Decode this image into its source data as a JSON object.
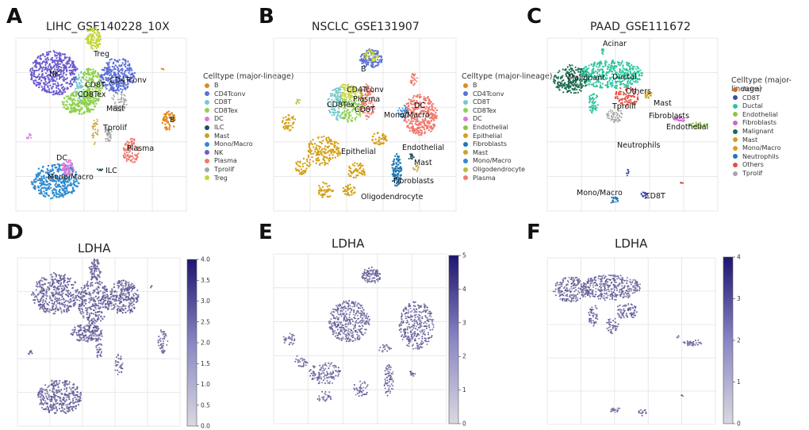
{
  "panels": {
    "A": {
      "letter": "A",
      "title": "LIHC_GSE140228_10X",
      "legend_title": "Celltype (major-lineage)"
    },
    "B": {
      "letter": "B",
      "title": "NSCLC_GSE131907",
      "legend_title": "Celltype (major-lineage)"
    },
    "C": {
      "letter": "C",
      "title": "PAAD_GSE111672",
      "legend_title": "Celltype (major-lineage)"
    },
    "D": {
      "letter": "D",
      "title": "LDHA"
    },
    "E": {
      "letter": "E",
      "title": "LDHA"
    },
    "F": {
      "letter": "F",
      "title": "LDHA"
    }
  },
  "colors": {
    "B": "#e08a1e",
    "CD4Tconv": "#5b6fd6",
    "CD8T": "#76c9c9",
    "CD8Tex": "#8fd14f",
    "DC": "#d97ad9",
    "ILC": "#1f4e5a",
    "Mast": "#c9a227",
    "Mono/Macro": "#2e8bd1",
    "NK": "#6a5acd",
    "Plasma": "#f07a70",
    "Tprolif": "#a6a6a6",
    "Treg": "#c6d63a",
    "Endothelial": "#8cc63f",
    "Epithelial": "#d4a017",
    "Fibroblasts": "#1f77b4",
    "Oligodendrocyte": "#b5bd3a",
    "Acinar": "#d2691e",
    "Ductal": "#2ec4a0",
    "Malignant": "#1b6b4f",
    "Neutrophils": "#c0392b",
    "Others": "#e74c3c",
    "FibroblastsPink": "#cc66cc",
    "Mono/MacroC": "#d4a017",
    "CD8TC": "#3b4ba8",
    "cmap_low": "#d9d9e0",
    "cmap_high": "#1e1570",
    "grid": "#e2e2e2"
  },
  "chart_data": [
    {
      "panel": "A",
      "type": "scatter",
      "title": "LIHC_GSE140228_10X",
      "legend": [
        "B",
        "CD4Tconv",
        "CD8T",
        "CD8Tex",
        "DC",
        "ILC",
        "Mast",
        "Mono/Macro",
        "NK",
        "Plasma",
        "Tprolif",
        "Treg"
      ],
      "cluster_labels": [
        "Treg",
        "NK",
        "CD8T",
        "CD4Tconv",
        "CD8Tex",
        "Mast",
        "Tprolif",
        "B",
        "Plasma",
        "DC",
        "ILC",
        "Mono/Macro"
      ]
    },
    {
      "panel": "B",
      "type": "scatter",
      "title": "NSCLC_GSE131907",
      "legend": [
        "B",
        "CD4Tconv",
        "CD8T",
        "CD8Tex",
        "DC",
        "Endothelial",
        "Epithelial",
        "Fibroblasts",
        "Mast",
        "Mono/Macro",
        "Oligodendrocyte",
        "Plasma"
      ],
      "cluster_labels": [
        "B",
        "CD4Tconv",
        "Plasma",
        "CD8Tex",
        "CD8T",
        "DC",
        "Mono/Macro",
        "Epithelial",
        "Endothelial",
        "Mast",
        "Fibroblasts",
        "Oligodendrocyte"
      ]
    },
    {
      "panel": "C",
      "type": "scatter",
      "title": "PAAD_GSE111672",
      "legend": [
        "Acinar",
        "CD8T",
        "Ductal",
        "Endothelial",
        "Fibroblasts",
        "Malignant",
        "Mast",
        "Mono/Macro",
        "Neutrophils",
        "Others",
        "Tprolif"
      ],
      "cluster_labels": [
        "Acinar",
        "Malignant",
        "Ductal",
        "Others",
        "Tprolif",
        "Mast",
        "Fibroblasts",
        "Endothelial",
        "Neutrophils",
        "Mono/Macro",
        "CD8T"
      ]
    },
    {
      "panel": "D",
      "type": "scatter",
      "title": "LDHA",
      "gene": "LDHA",
      "colorbar": {
        "min": 0.0,
        "max": 4.0,
        "ticks": [
          "4.0",
          "3.5",
          "3.0",
          "2.5",
          "2.0",
          "1.5",
          "1.0",
          "0.5",
          "0.0"
        ]
      }
    },
    {
      "panel": "E",
      "type": "scatter",
      "title": "LDHA",
      "gene": "LDHA",
      "colorbar": {
        "min": 0,
        "max": 5,
        "ticks": [
          "5",
          "4",
          "3",
          "2",
          "1",
          "0"
        ]
      }
    },
    {
      "panel": "F",
      "type": "scatter",
      "title": "LDHA",
      "gene": "LDHA",
      "colorbar": {
        "min": 0,
        "max": 4,
        "ticks": [
          "4",
          "3",
          "2",
          "1",
          "0"
        ]
      }
    }
  ]
}
